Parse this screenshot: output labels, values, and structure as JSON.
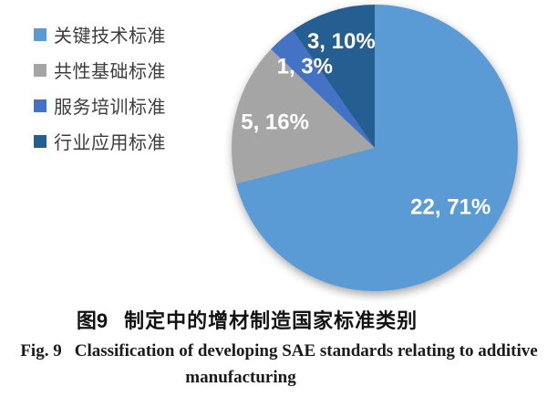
{
  "chart_data": {
    "type": "pie",
    "categories": [
      "关键技术标准",
      "共性基础标准",
      "服务培训标准",
      "行业应用标准"
    ],
    "values": [
      22,
      5,
      1,
      3
    ],
    "percents": [
      71,
      16,
      3,
      10
    ],
    "data_labels": [
      "22, 71%",
      "5, 16%",
      "1, 3%",
      "3, 10%"
    ],
    "colors": [
      "#5B9BD5",
      "#A5A5A5",
      "#4472C4",
      "#255E91"
    ],
    "start_angle_deg": 0,
    "direction": "clockwise",
    "legend_position": "left",
    "title_cn": "制定中的增材制造国家标准类别",
    "title_en": "Classification of developing SAE standards relating to additive manufacturing"
  },
  "legend": {
    "items": [
      {
        "label": "关键技术标准",
        "color": "#5B9BD5"
      },
      {
        "label": "共性基础标准",
        "color": "#A5A5A5"
      },
      {
        "label": "服务培训标准",
        "color": "#4472C4"
      },
      {
        "label": "行业应用标准",
        "color": "#255E91"
      }
    ]
  },
  "caption": {
    "figure_label_cn": "图9",
    "title_cn": "制定中的增材制造国家标准类别",
    "figure_label_en": "Fig. 9",
    "title_en_line1": "Classification of developing SAE standards relating to additive",
    "title_en_line2": "manufacturing"
  }
}
